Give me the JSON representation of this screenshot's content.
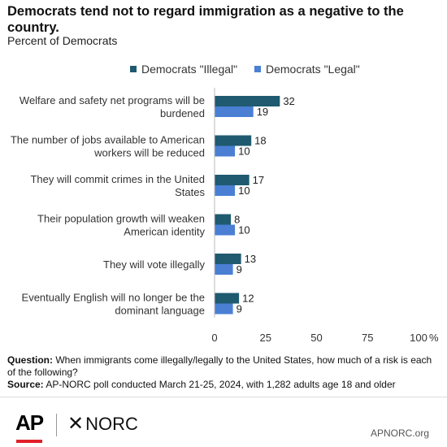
{
  "title": "Democrats tend not to regard immigration as a negative to the country.",
  "subtitle": "Percent of Democrats",
  "chart_data": {
    "type": "bar",
    "orientation": "horizontal",
    "categories": [
      [
        "Welfare and safety net programs will be",
        "burdened"
      ],
      [
        "The number of jobs available to American",
        "workers will be reduced"
      ],
      [
        "They will commit crimes in the United",
        "States"
      ],
      [
        "Their population growth will weaken",
        "American identity"
      ],
      [
        "They will vote illegally"
      ],
      [
        "Eventually English will no longer be the",
        "dominant language"
      ]
    ],
    "series": [
      {
        "name": "Democrats \"Illegal\"",
        "color": "#1f5a70",
        "values": [
          32,
          18,
          17,
          8,
          13,
          12
        ]
      },
      {
        "name": "Democrats \"Legal\"",
        "color": "#4a7fd4",
        "values": [
          19,
          10,
          10,
          10,
          9,
          9
        ]
      }
    ],
    "xlim": [
      0,
      100
    ],
    "xticks": [
      "0",
      "25",
      "50",
      "75",
      "100"
    ],
    "x_unit": "%",
    "legend_position": "top",
    "grid": false,
    "data_labels": true
  },
  "footnote": {
    "question_label": "Question:",
    "question_text": "When immigrants come illegally/legally to the United States, how much of a risk is each of the following?",
    "source_label": "Source:",
    "source_text": "AP-NORC poll conducted March 21-25, 2024, with 1,282 adults age 18 and older"
  },
  "footer": {
    "ap_logo": "AP",
    "norc_star": "✕",
    "norc_logo": "NORC",
    "site": "APNORC.org"
  }
}
